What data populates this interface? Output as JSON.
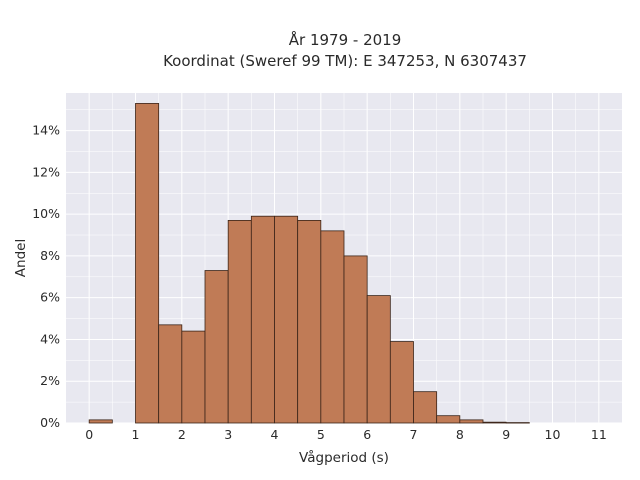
{
  "chart_data": {
    "type": "bar",
    "title_lines": [
      "År 1979 - 2019",
      "Koordinat (Sweref 99 TM): E 347253, N 6307437"
    ],
    "xlabel": "Vågperiod (s)",
    "ylabel": "Andel",
    "xlim": [
      -0.5,
      11.5
    ],
    "ylim": [
      0,
      0.158
    ],
    "x_ticks": [
      0,
      1,
      2,
      3,
      4,
      5,
      6,
      7,
      8,
      9,
      10,
      11
    ],
    "x_tick_labels": [
      "0",
      "1",
      "2",
      "3",
      "4",
      "5",
      "6",
      "7",
      "8",
      "9",
      "10",
      "11"
    ],
    "y_ticks": [
      0,
      0.02,
      0.04,
      0.06,
      0.08,
      0.1,
      0.12,
      0.14
    ],
    "y_tick_labels": [
      "0%",
      "2%",
      "4%",
      "6%",
      "8%",
      "10%",
      "12%",
      "14%"
    ],
    "grid": true,
    "bin_width": 0.5,
    "colors": {
      "bar_fill": "#c07b56",
      "bar_edge": "#3a2418",
      "plot_background": "#e8e8f0",
      "grid": "#ffffff"
    },
    "bins": [
      {
        "start": 0.0,
        "value": 0.0015
      },
      {
        "start": 1.0,
        "value": 0.153
      },
      {
        "start": 1.5,
        "value": 0.047
      },
      {
        "start": 2.0,
        "value": 0.044
      },
      {
        "start": 2.5,
        "value": 0.073
      },
      {
        "start": 3.0,
        "value": 0.097
      },
      {
        "start": 3.5,
        "value": 0.099
      },
      {
        "start": 4.0,
        "value": 0.099
      },
      {
        "start": 4.5,
        "value": 0.097
      },
      {
        "start": 5.0,
        "value": 0.092
      },
      {
        "start": 5.5,
        "value": 0.08
      },
      {
        "start": 6.0,
        "value": 0.061
      },
      {
        "start": 6.5,
        "value": 0.039
      },
      {
        "start": 7.0,
        "value": 0.015
      },
      {
        "start": 7.5,
        "value": 0.0035
      },
      {
        "start": 8.0,
        "value": 0.0015
      },
      {
        "start": 8.5,
        "value": 0.0004
      },
      {
        "start": 9.0,
        "value": 0.0002
      }
    ]
  }
}
